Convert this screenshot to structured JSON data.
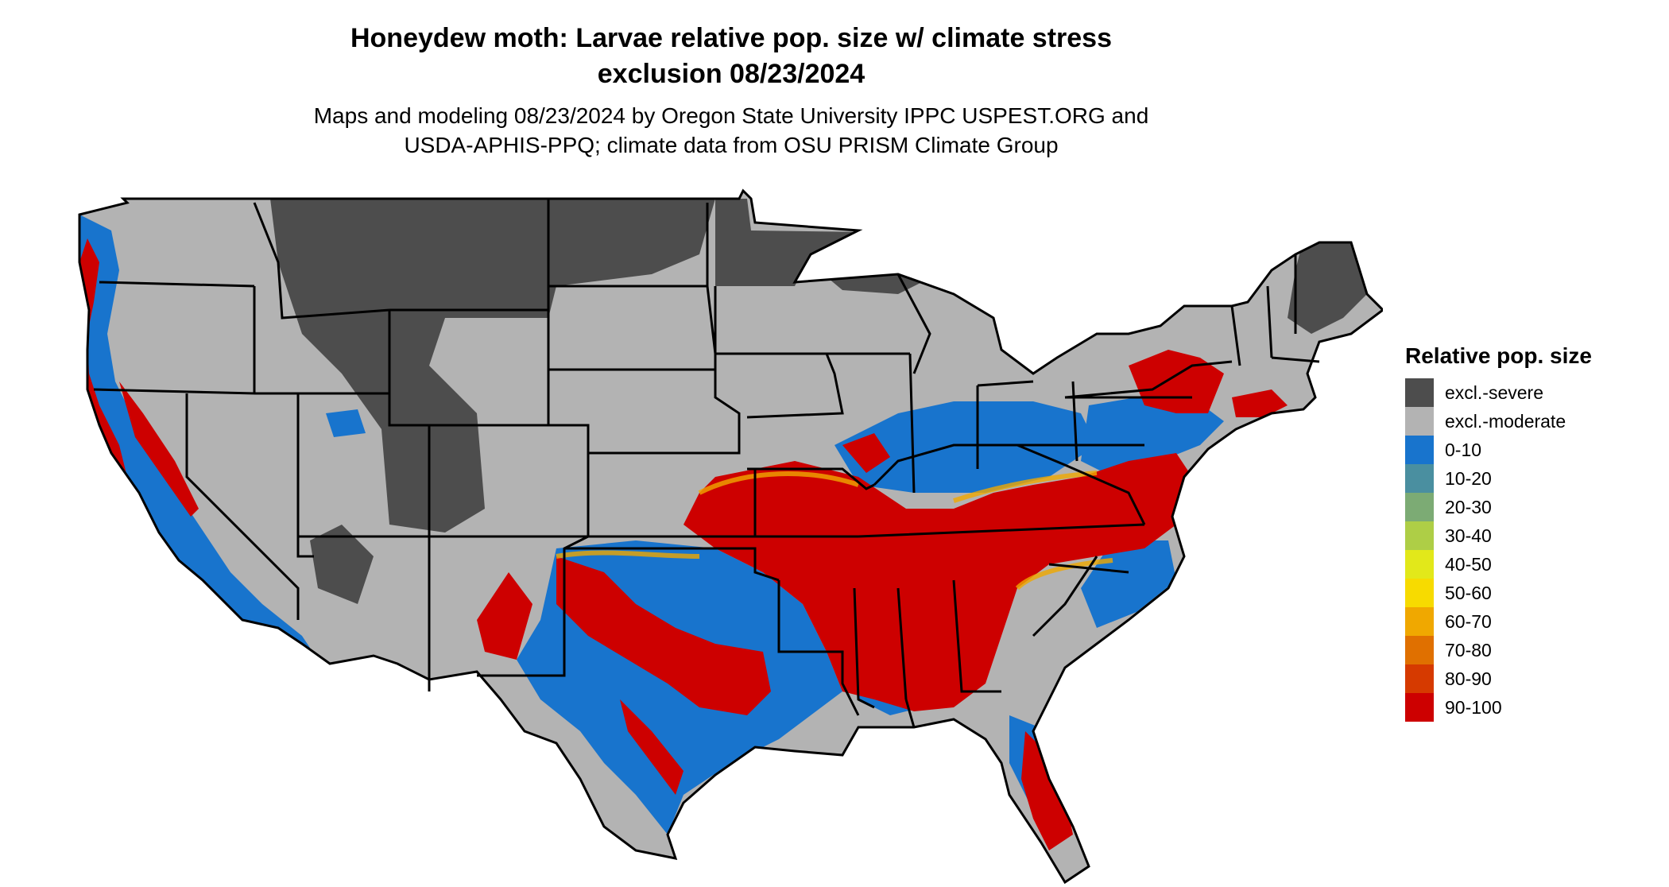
{
  "title": {
    "line1": "Honeydew moth: Larvae relative pop. size w/ climate stress",
    "line2": "exclusion 08/23/2024"
  },
  "subtitle": {
    "line1": "Maps and modeling 08/23/2024 by Oregon State University IPPC USPEST.ORG and",
    "line2": "USDA-APHIS-PPQ; climate data from OSU PRISM Climate Group"
  },
  "legend": {
    "title": "Relative pop. size",
    "items": [
      {
        "label": "excl.-severe",
        "color": "#4d4d4d"
      },
      {
        "label": "excl.-moderate",
        "color": "#b3b3b3"
      },
      {
        "label": "0-10",
        "color": "#1874cd"
      },
      {
        "label": "10-20",
        "color": "#4a8fa0"
      },
      {
        "label": "20-30",
        "color": "#7cab74"
      },
      {
        "label": "30-40",
        "color": "#aece46"
      },
      {
        "label": "40-50",
        "color": "#e2e81a"
      },
      {
        "label": "50-60",
        "color": "#f7db00"
      },
      {
        "label": "60-70",
        "color": "#f0a800"
      },
      {
        "label": "70-80",
        "color": "#e07000"
      },
      {
        "label": "80-90",
        "color": "#d63a00"
      },
      {
        "label": "90-100",
        "color": "#cd0000"
      }
    ]
  }
}
